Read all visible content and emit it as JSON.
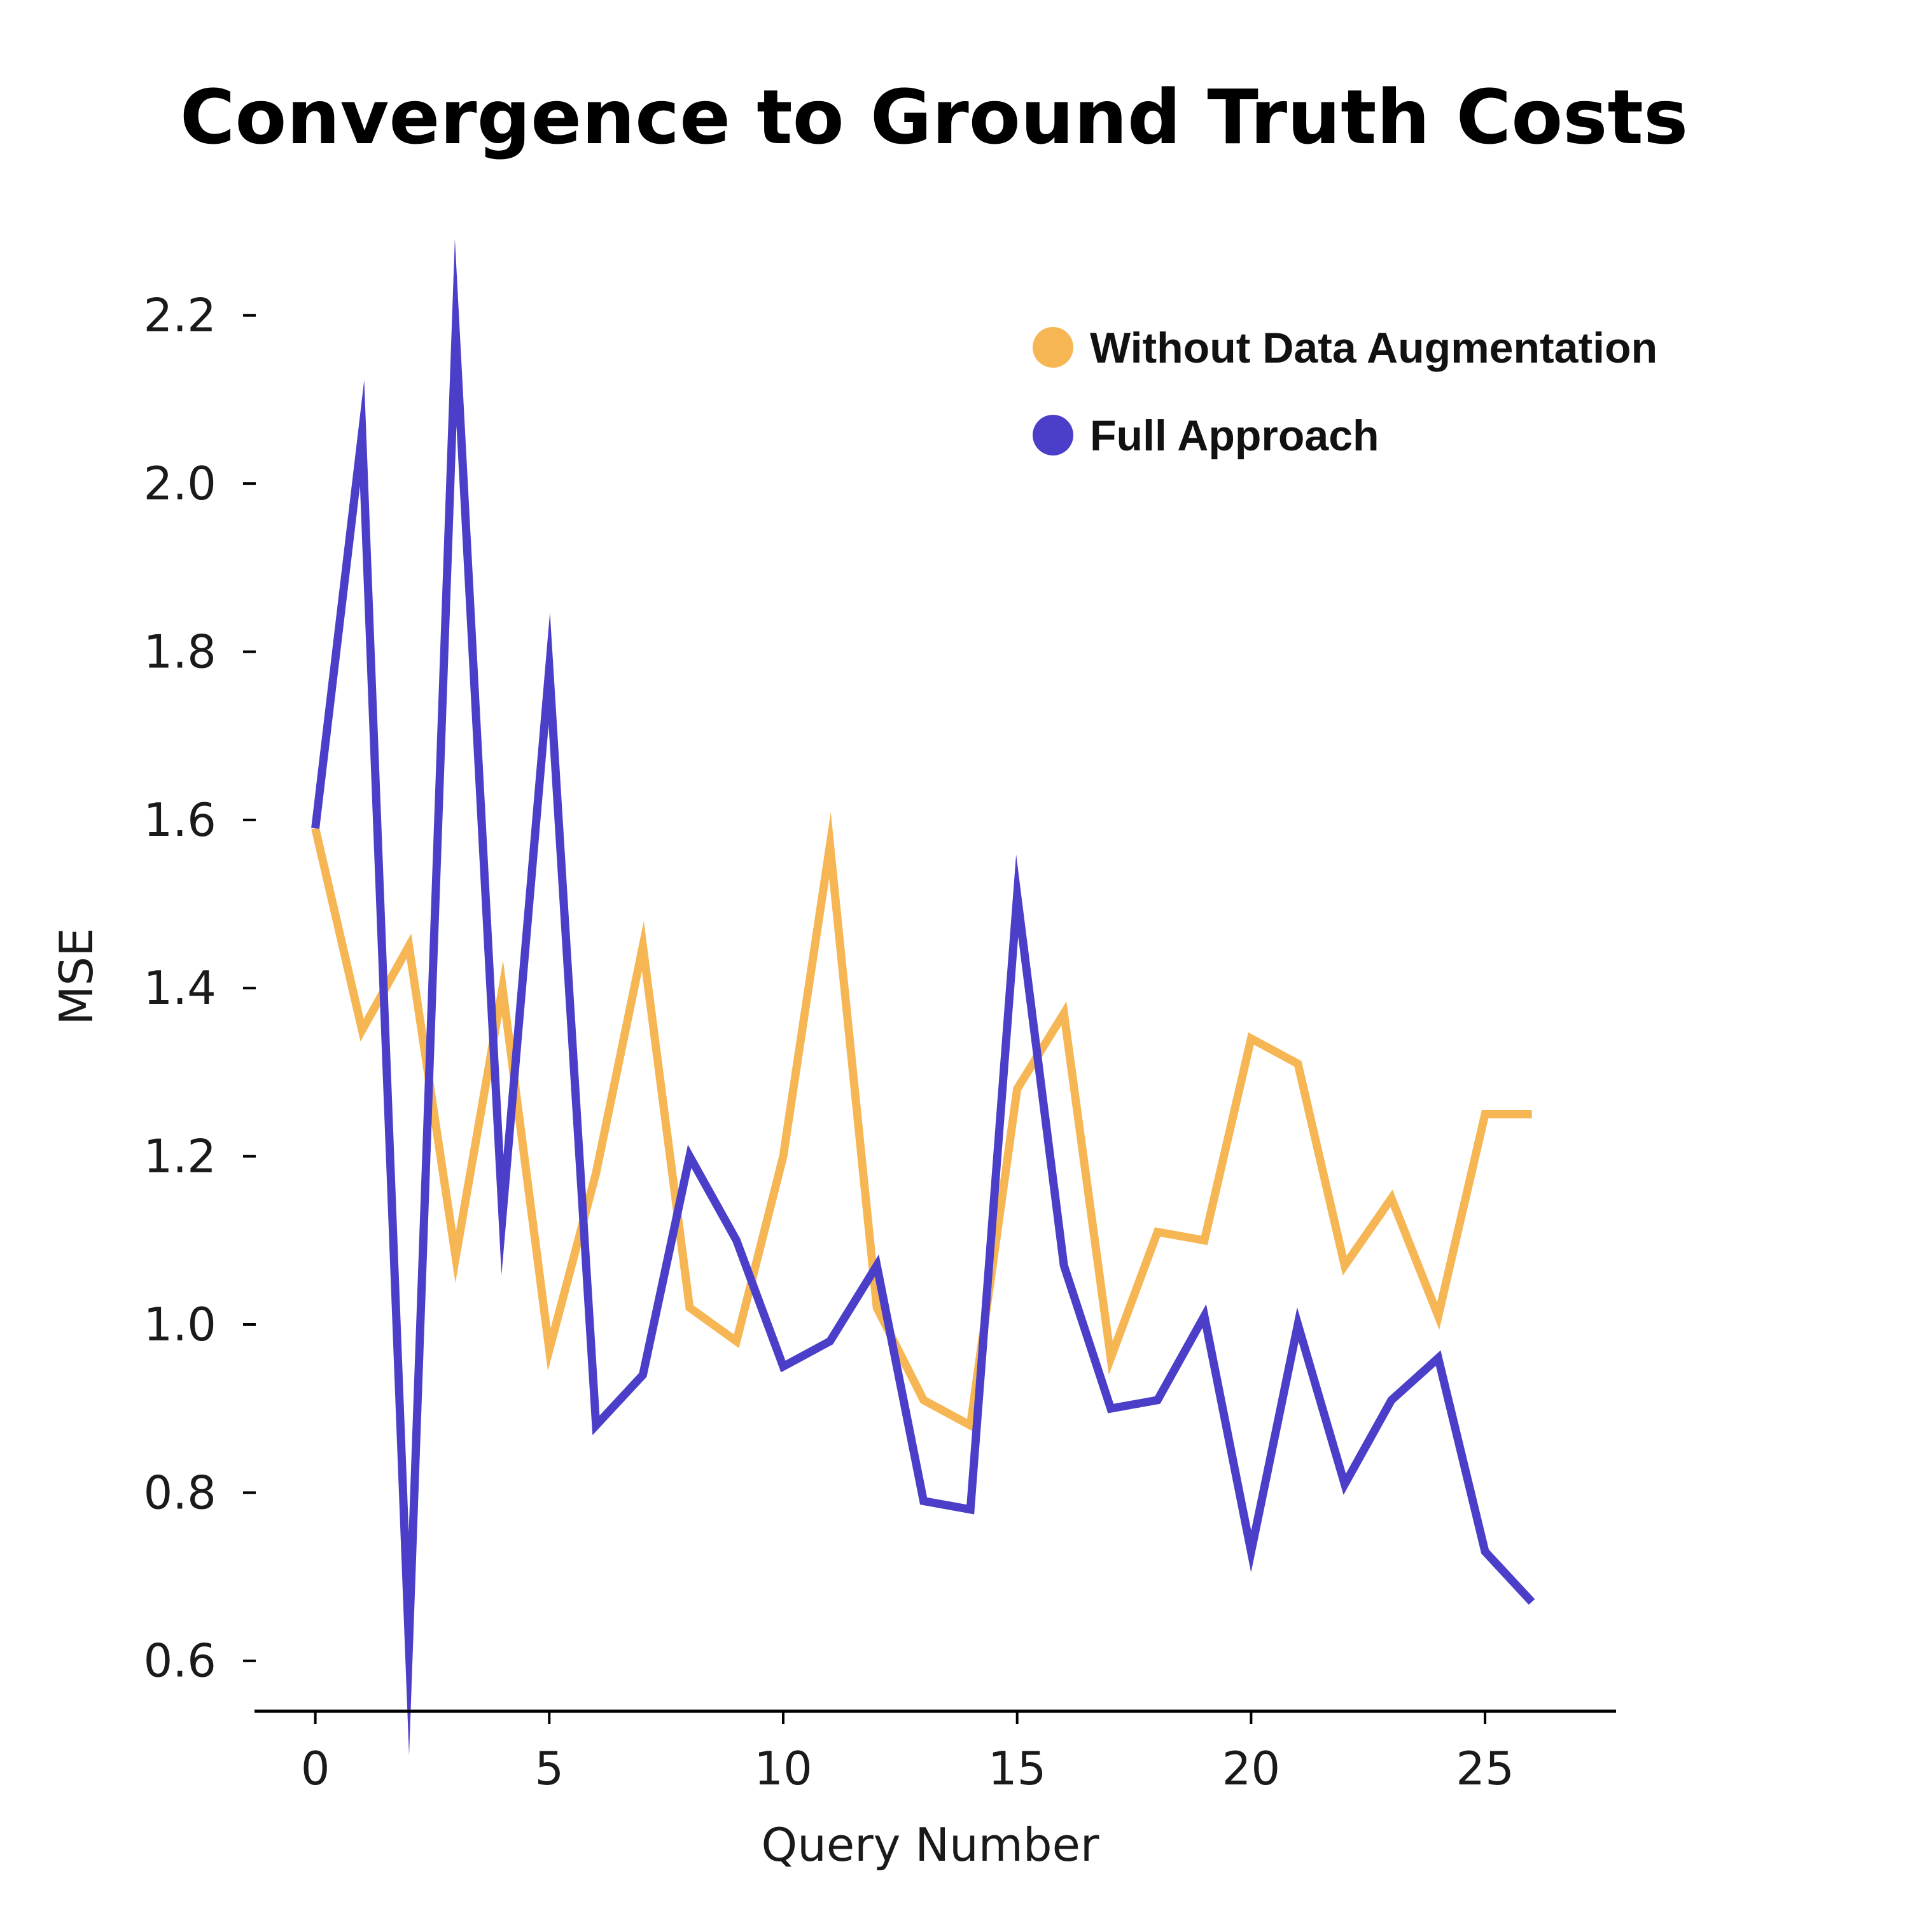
{
  "chart_data": {
    "type": "line",
    "title": "Convergence to Ground Truth Costs",
    "xlabel": "Query Number",
    "ylabel": "MSE",
    "xlim": [
      -1.3,
      27.8
    ],
    "ylim": [
      0.54,
      2.28
    ],
    "x_ticks": [
      0,
      5,
      10,
      15,
      20,
      25
    ],
    "y_ticks": [
      0.6,
      0.8,
      1.0,
      1.2,
      1.4,
      1.6,
      1.8,
      2.0,
      2.2
    ],
    "y_tick_labels": [
      "0.6",
      "0.8",
      "1.0",
      "1.2",
      "1.4",
      "1.6",
      "1.8",
      "2.0",
      "2.2"
    ],
    "grid": false,
    "legend_position": "top-right",
    "x": [
      0,
      1,
      2,
      3,
      4,
      5,
      6,
      7,
      8,
      9,
      10,
      11,
      12,
      13,
      14,
      15,
      16,
      17,
      18,
      19,
      20,
      21,
      22,
      23,
      24,
      25,
      26
    ],
    "series": [
      {
        "name": "Without Data Augmentation",
        "color": "#F6B654",
        "values": [
          1.59,
          1.35,
          1.45,
          1.08,
          1.4,
          0.97,
          1.18,
          1.45,
          1.02,
          0.98,
          1.2,
          1.57,
          1.02,
          0.91,
          0.88,
          1.28,
          1.37,
          0.96,
          1.11,
          1.1,
          1.34,
          1.31,
          1.07,
          1.15,
          1.01,
          1.25,
          1.25
        ]
      },
      {
        "name": "Full Approach",
        "color": "#4B3FC9",
        "values": [
          1.59,
          2.06,
          0.62,
          2.18,
          1.13,
          1.78,
          0.88,
          0.94,
          1.2,
          1.1,
          0.95,
          0.98,
          1.07,
          0.79,
          0.78,
          1.51,
          1.07,
          0.9,
          0.91,
          1.01,
          0.73,
          1.0,
          0.81,
          0.91,
          0.96,
          0.73,
          0.67
        ]
      }
    ]
  }
}
